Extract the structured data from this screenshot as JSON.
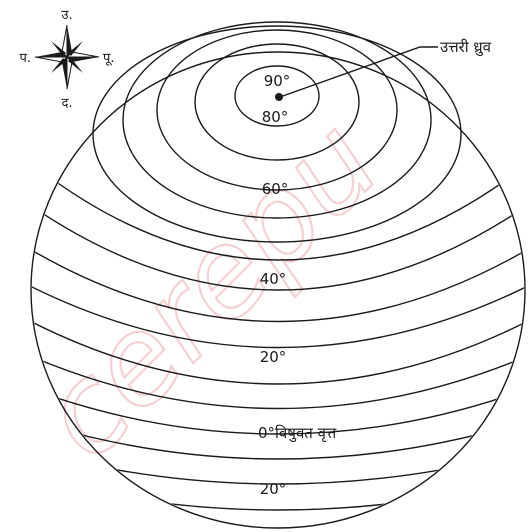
{
  "watermark": {
    "text": "cerepu"
  },
  "compass": {
    "north": "उ.",
    "south": "द.",
    "east": "पू.",
    "west": "प."
  },
  "pole_label": "उत्तरी ध्रुव",
  "latitude_labels": {
    "lat_90": "90°",
    "lat_80": "80°",
    "lat_60": "60°",
    "lat_40": "40°",
    "lat_20": "20°",
    "equator": "0°विषुवत वृत्त",
    "lat_20_south": "20°"
  },
  "colors": {
    "line": "#1a1a1a",
    "watermark": "#f3c9cc",
    "background": "#ffffff"
  }
}
